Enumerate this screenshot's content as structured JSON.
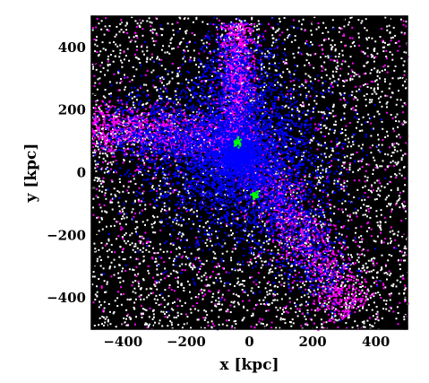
{
  "chart_data": {
    "type": "scatter",
    "title": "",
    "xlabel": "x [kpc]",
    "ylabel": "y [kpc]",
    "xlim": [
      -500,
      500
    ],
    "ylim": [
      -500,
      500
    ],
    "xticks": [
      -400,
      -200,
      0,
      200,
      400
    ],
    "yticks": [
      -400,
      -200,
      0,
      200,
      400
    ],
    "xtick_labels": [
      "−400",
      "−200",
      "0",
      "200",
      "400"
    ],
    "ytick_labels": [
      "−400",
      "−200",
      "0",
      "200",
      "400"
    ],
    "grid": false,
    "legend": "none",
    "background_color": "#000000",
    "series": [
      {
        "color": "#ffffff",
        "description_values": [
          [
            -350,
            350
          ],
          [
            -300,
            150
          ],
          [
            -250,
            -250
          ],
          [
            350,
            150
          ],
          [
            300,
            -350
          ],
          [
            -100,
            450
          ],
          [
            200,
            400
          ],
          [
            -400,
            -100
          ]
        ]
      },
      {
        "color": "#ff00ff",
        "description_values": [
          [
            -450,
            130
          ],
          [
            -30,
            480
          ],
          [
            100,
            -200
          ],
          [
            300,
            -400
          ],
          [
            -200,
            200
          ],
          [
            250,
            80
          ]
        ]
      },
      {
        "color": "#0000ff",
        "description_values": [
          [
            -40,
            100
          ],
          [
            0,
            0
          ],
          [
            -150,
            200
          ],
          [
            50,
            250
          ],
          [
            100,
            -100
          ],
          [
            -100,
            -150
          ],
          [
            200,
            200
          ]
        ]
      },
      {
        "color": "#00ff00",
        "description_values": [
          [
            -40,
            100
          ],
          [
            15,
            -70
          ]
        ]
      }
    ],
    "features": {
      "filaments": [
        {
          "from": [
            -500,
            150
          ],
          "to": [
            -40,
            100
          ],
          "width": 80,
          "color": "#ff00ff"
        },
        {
          "from": [
            -40,
            100
          ],
          "to": [
            330,
            -440
          ],
          "width": 90,
          "color": "#ff00ff"
        },
        {
          "from": [
            -40,
            100
          ],
          "to": [
            -40,
            480
          ],
          "width": 55,
          "color": "#ff00ff"
        }
      ],
      "dense_cores": [
        {
          "x": -40,
          "y": 100,
          "color": "#00ff00"
        },
        {
          "x": 15,
          "y": -70,
          "color": "#00ff00"
        }
      ]
    }
  }
}
